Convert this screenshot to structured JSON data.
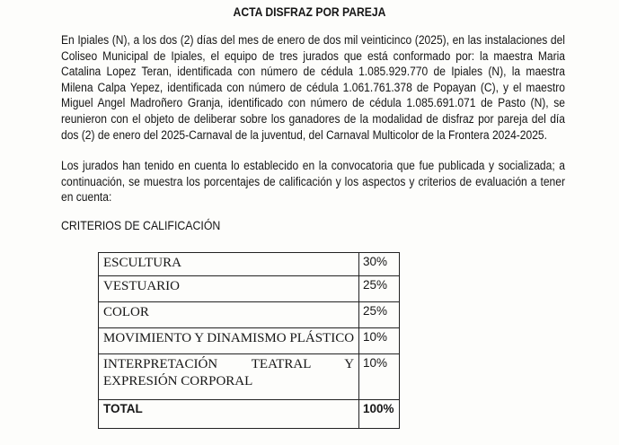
{
  "title": "ACTA DISFRAZ POR PAREJA",
  "paragraphs": [
    "En Ipiales (N), a los dos (2) días del mes de enero de dos mil veinticinco (2025), en las instalaciones del Coliseo Municipal de Ipiales, el equipo de tres jurados que está conformado por: la maestra Maria Catalina Lopez Teran, identificada con número de cédula 1.085.929.770 de Ipiales (N), la maestra Milena Calpa Yepez, identificada con número de cédula 1.061.761.378 de Popayan (C), y el maestro Miguel Angel Madroñero Granja, identificado con número de cédula 1.085.691.071 de Pasto (N), se reunieron con el objeto de deliberar sobre los ganadores de la modalidad de disfraz por pareja del día dos (2) de enero del 2025-Carnaval de la juventud, del Carnaval Multicolor de la Frontera 2024-2025.",
    "Los jurados han tenido en cuenta lo establecido en la convocatoria que fue publicada y socializada; a continuación, se muestra los porcentajes de calificación y los aspectos y criterios de evaluación a tener en cuenta:"
  ],
  "criteria_heading": "CRITERIOS DE CALIFICACIÓN",
  "table": {
    "rows": [
      {
        "criterion": "ESCULTURA",
        "percent": "30%"
      },
      {
        "criterion": "VESTUARIO",
        "percent": "25%"
      },
      {
        "criterion": "COLOR",
        "percent": "25%"
      },
      {
        "criterion": "MOVIMIENTO Y DINAMISMO PLÁSTICO",
        "percent": "10%"
      },
      {
        "criterion": "INTERPRETACIÓN TEATRAL Y EXPRESIÓN CORPORAL",
        "percent": "10%"
      }
    ],
    "total_label": "TOTAL",
    "total_value": "100%"
  }
}
